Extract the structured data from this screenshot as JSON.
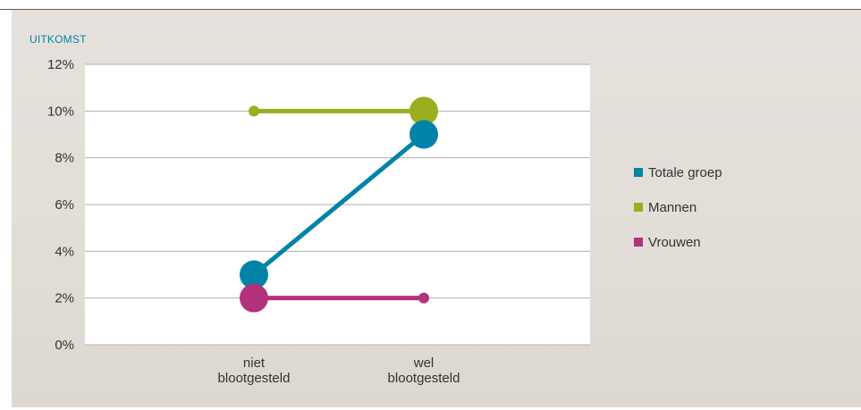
{
  "outcome_label": "UITKOMST",
  "chart_data": {
    "type": "line",
    "categories": [
      "niet blootgesteld",
      "wel blootgesteld"
    ],
    "category_lines": [
      [
        "niet",
        "blootgesteld"
      ],
      [
        "wel",
        "blootgesteld"
      ]
    ],
    "ylim": [
      0,
      12
    ],
    "y_ticks": [
      "0%",
      "2%",
      "4%",
      "6%",
      "8%",
      "10%",
      "12%"
    ],
    "grid": true,
    "legend": "right",
    "series": [
      {
        "name": "Totale groep",
        "values": [
          3,
          9
        ],
        "color": "#0083a8",
        "marker_large": [
          true,
          true
        ]
      },
      {
        "name": "Mannen",
        "values": [
          10,
          10
        ],
        "color": "#9aae1e",
        "marker_large": [
          false,
          true
        ]
      },
      {
        "name": "Vrouwen",
        "values": [
          2,
          2
        ],
        "color": "#b3307a",
        "marker_large": [
          true,
          false
        ]
      }
    ]
  },
  "colors": {
    "accent": "#0083a8",
    "plot_background": "#ffffff",
    "panel_background": "#e4dfda",
    "grid": "#b3aea8"
  }
}
